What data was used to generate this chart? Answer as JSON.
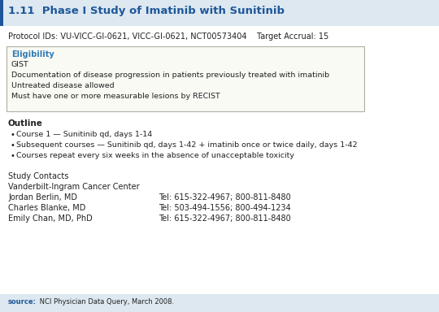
{
  "title_number": "1.11",
  "title_text": "  Phase I Study of Imatinib with Sunitinib",
  "protocol_line": "Protocol IDs: VU-VICC-GI-0621, VICC-GI-0621, NCT00573404    Target Accrual: 15",
  "eligibility_label": "Eligibility",
  "eligibility_items": [
    "GIST",
    "Documentation of disease progression in patients previously treated with imatinib",
    "Untreated disease allowed",
    "Must have one or more measurable lesions by RECIST"
  ],
  "outline_label": "Outline",
  "outline_bullets": [
    "Course 1 — Sunitinib qd, days 1-14",
    "Subsequent courses — Sunitinib qd, days 1-42 + imatinib once or twice daily, days 1-42",
    "Courses repeat every six weeks in the absence of unacceptable toxicity"
  ],
  "contacts_header": "Study Contacts",
  "contacts_institution": "Vanderbilt-Ingram Cancer Center",
  "contacts": [
    {
      "name": "Jordan Berlin, MD",
      "tel": "Tel: 615-322-4967; 800-811-8480"
    },
    {
      "name": "Charles Blanke, MD",
      "tel": "Tel: 503-494-1556; 800-494-1234"
    },
    {
      "name": "Emily Chan, MD, PhD",
      "tel": "Tel: 615-322-4967; 800-811-8480"
    }
  ],
  "source_label": "source:",
  "source_text": " NCI Physician Data Query, March 2008.",
  "title_color": "#1e5799",
  "eligibility_color": "#2e7ab5",
  "source_color": "#1e5799",
  "header_bg": "#dde8f0",
  "box_bg": "#fafaf5",
  "box_border": "#b0b0a0",
  "footer_bg": "#dde8f0",
  "bg_color": "#e8eef4",
  "body_bg": "#ffffff",
  "text_color": "#222222"
}
